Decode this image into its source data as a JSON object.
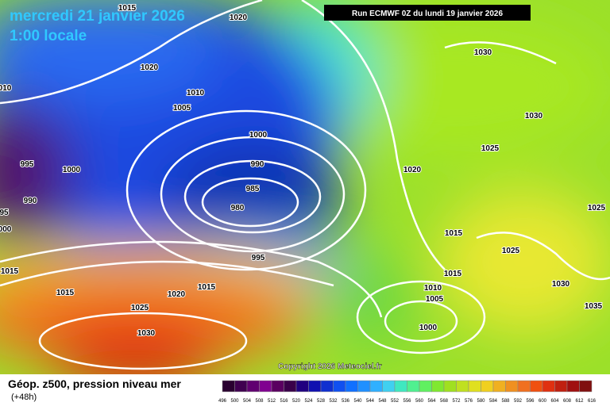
{
  "header": {
    "title": "mercredi 21 janvier 2026",
    "time": "1:00 locale",
    "run": "Run ECMWF 0Z du lundi 19 janvier 2026"
  },
  "isobar_labels": [
    "1015",
    "1020",
    "1020",
    "1010",
    "1005",
    "1030",
    "1030",
    "1025",
    "1000",
    "990",
    "985",
    "980",
    "995",
    "1000",
    "990",
    "95",
    "000",
    "010",
    "1020",
    "1015",
    "1025",
    "1025",
    "1015",
    "1030",
    "1010",
    "1005",
    "1035",
    "1000",
    "995",
    "1015",
    "1015",
    "1015",
    "1020",
    "1025",
    "1030"
  ],
  "copyright": "Copyright 2026 Meteociel.fr",
  "footer": {
    "title": "Géop. z500, pression niveau mer",
    "lead": "(+48h)"
  },
  "legend": {
    "labels": [
      "496",
      "500",
      "504",
      "508",
      "512",
      "516",
      "520",
      "524",
      "528",
      "532",
      "536",
      "540",
      "544",
      "548",
      "552",
      "556",
      "560",
      "564",
      "568",
      "572",
      "576",
      "580",
      "584",
      "588",
      "592",
      "596",
      "600",
      "604",
      "608",
      "612",
      "616"
    ]
  }
}
